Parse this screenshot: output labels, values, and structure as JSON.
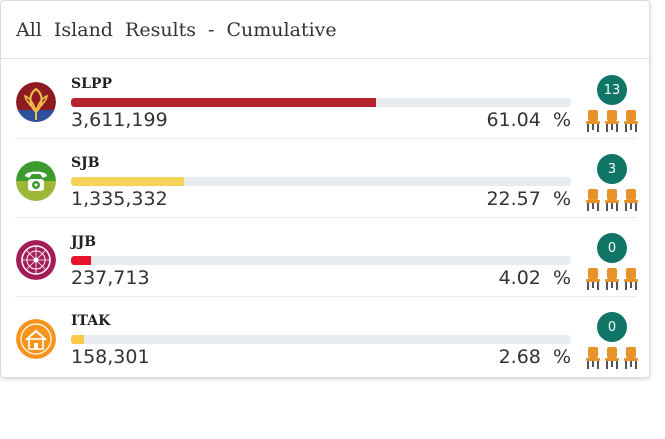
{
  "header": {
    "title": "All  Island  Results  -  Cumulative"
  },
  "parties": [
    {
      "name": "SLPP",
      "votes": "3,611,199",
      "percent": "61.04  %",
      "share": 61.04,
      "seats": "13",
      "color": "#b5222a",
      "icon": "lotus-bud-icon"
    },
    {
      "name": "SJB",
      "votes": "1,335,332",
      "percent": "22.57  %",
      "share": 22.57,
      "seats": "3",
      "color": "#f5d25a",
      "icon": "telephone-icon"
    },
    {
      "name": "JJB",
      "votes": "237,713",
      "percent": "4.02  %",
      "share": 4.02,
      "seats": "0",
      "color": "#e8132a",
      "icon": "compass-icon"
    },
    {
      "name": "ITAK",
      "votes": "158,301",
      "percent": "2.68  %",
      "share": 2.68,
      "seats": "0",
      "color": "#f7c945",
      "icon": "house-icon"
    }
  ],
  "colors": {
    "seat_badge": "#0f7566",
    "chair": "#e8922a"
  }
}
